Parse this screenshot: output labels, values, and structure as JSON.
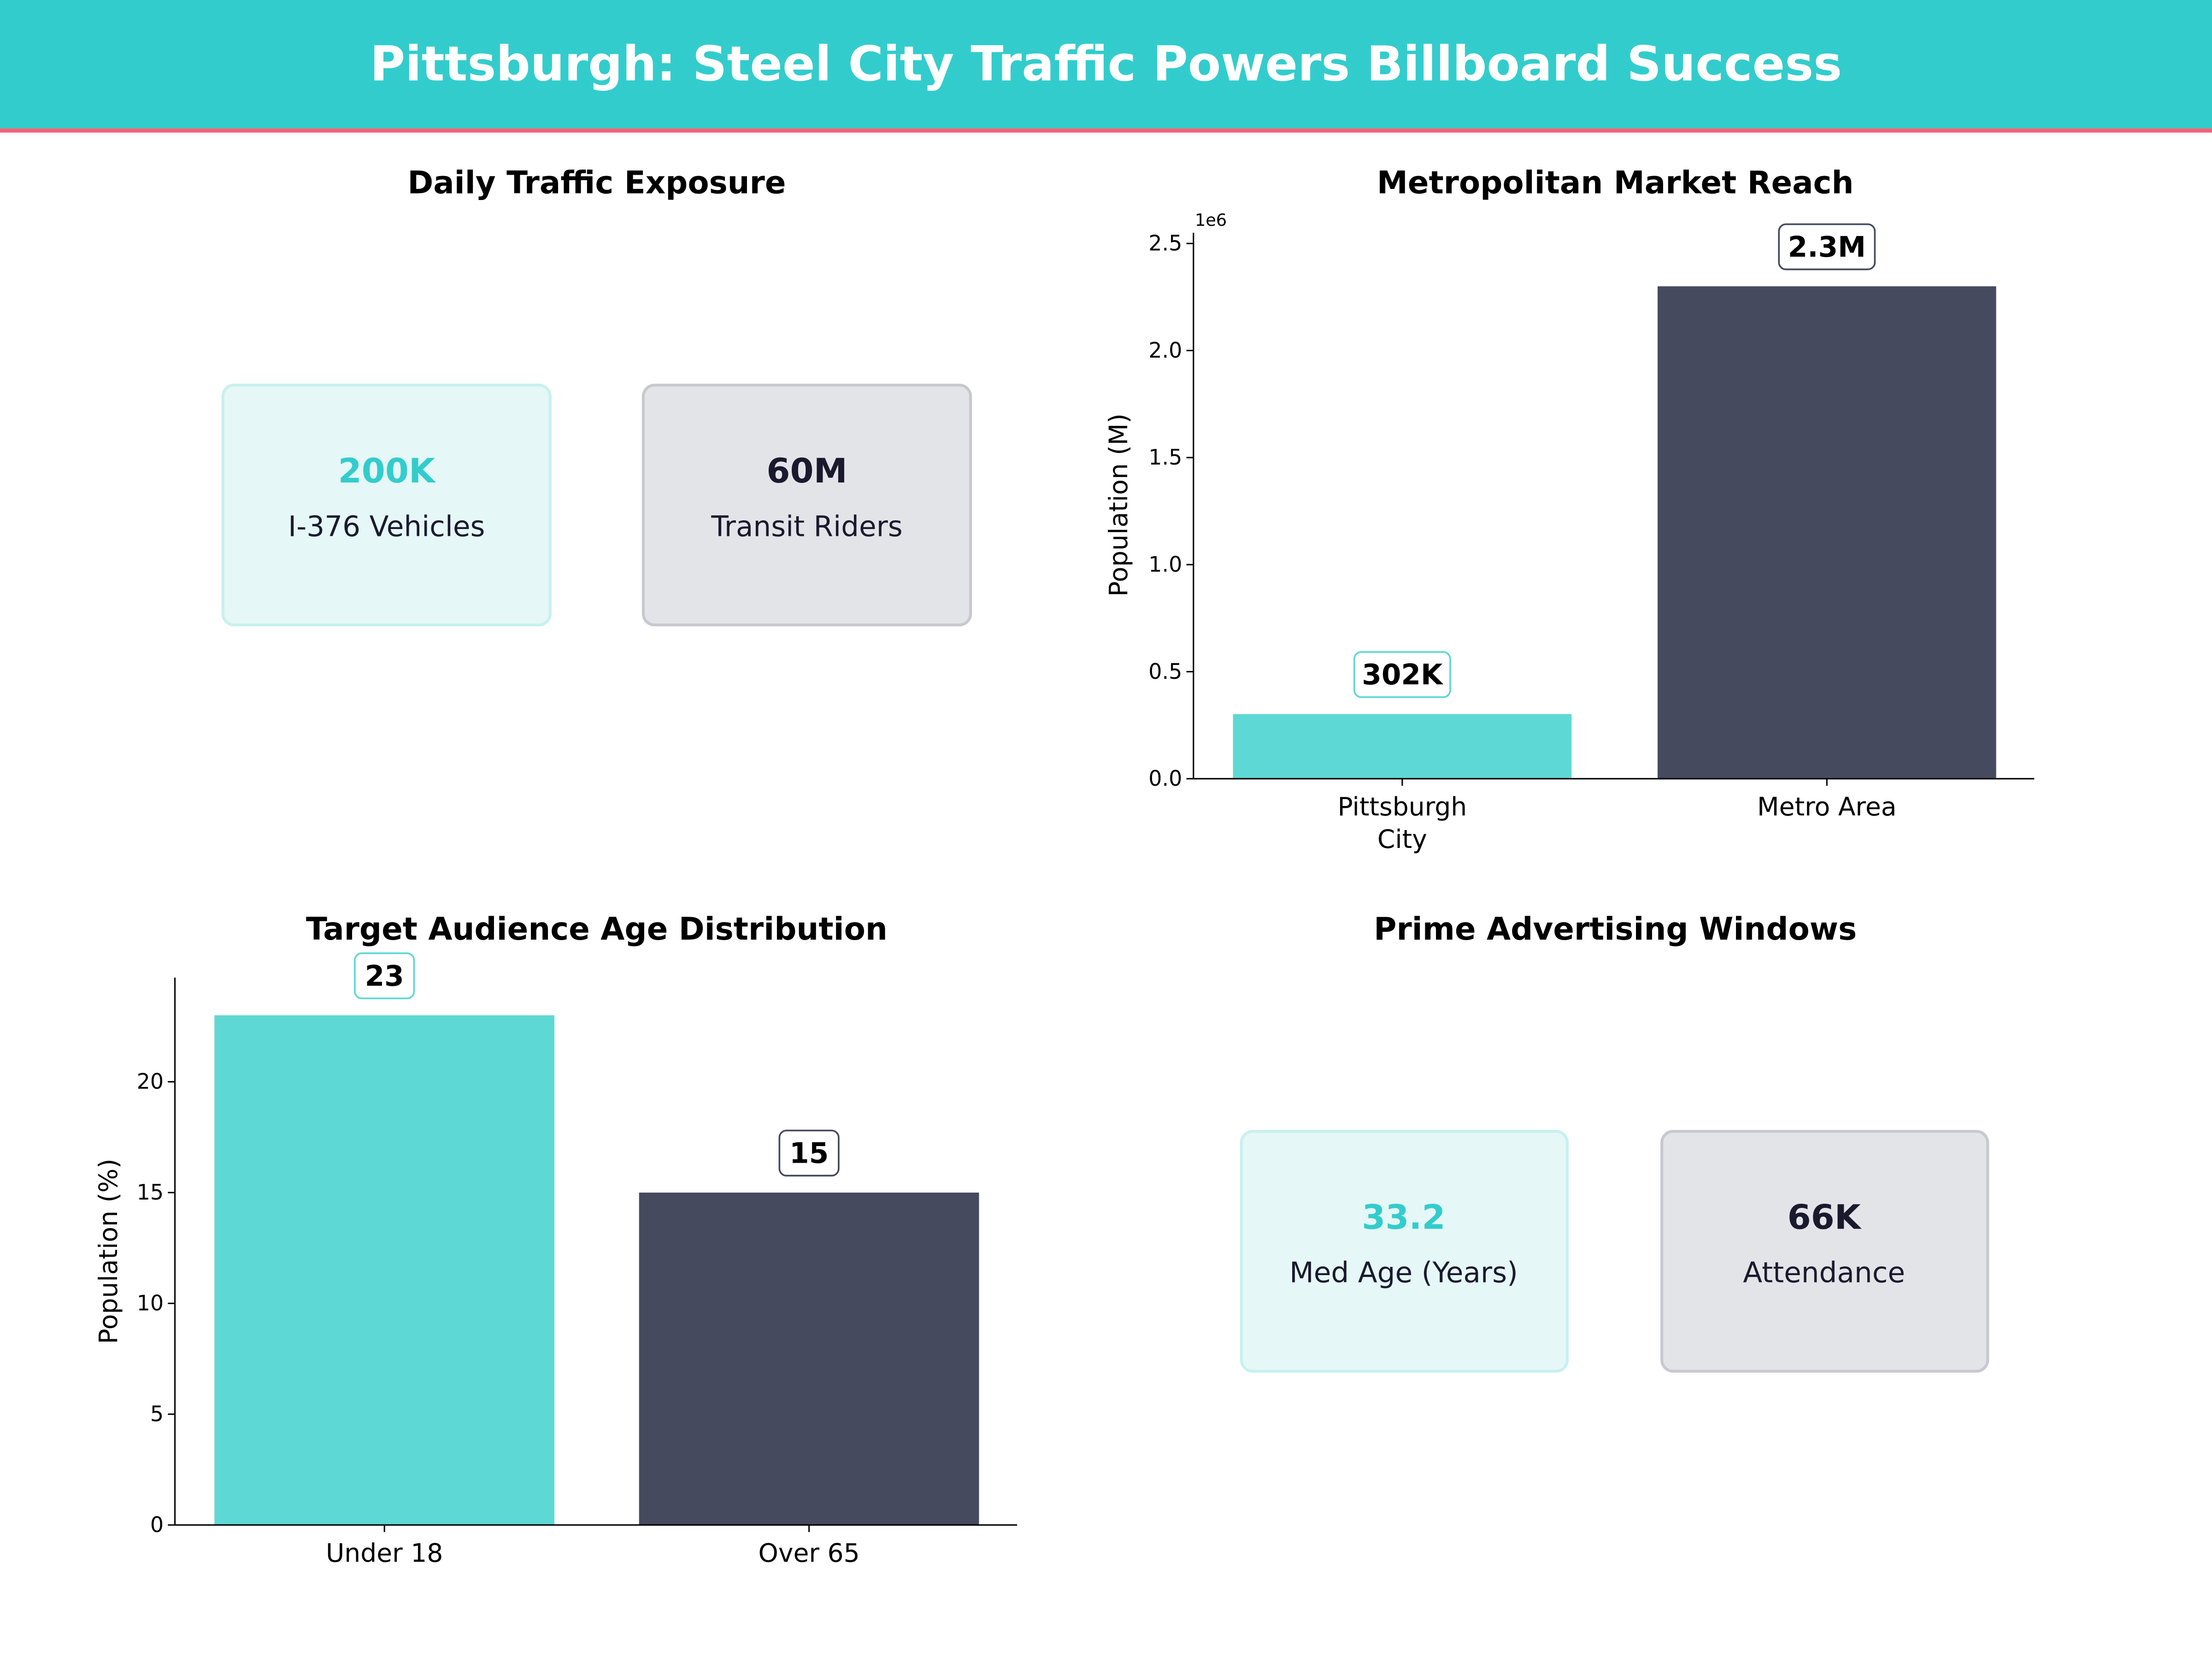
{
  "header": {
    "title": "Pittsburgh: Steel City Traffic Powers Billboard Success",
    "bg_color": "#33CCCC",
    "accent_line": "#F06478"
  },
  "panels": {
    "traffic": {
      "title": "Daily Traffic Exposure",
      "kpis": [
        {
          "value": "200K",
          "label": "I-376 Vehicles",
          "color": "#33CCCC"
        },
        {
          "value": "60M",
          "label": "Transit Riders",
          "color": "#1A1A2E"
        }
      ]
    },
    "windows": {
      "title": "Prime Advertising Windows",
      "kpis": [
        {
          "value": "33.2",
          "label": "Med Age (Years)",
          "color": "#33CCCC"
        },
        {
          "value": "66K",
          "label": "Attendance",
          "color": "#1A1A2E"
        }
      ]
    }
  },
  "chart_data": [
    {
      "type": "bar",
      "title": "Metropolitan Market Reach",
      "ylabel": "Population (M)",
      "offset_label": "1e6",
      "categories": [
        "Pittsburgh\nCity",
        "Metro Area"
      ],
      "category_lines": [
        [
          "Pittsburgh",
          "City"
        ],
        [
          "Metro Area"
        ]
      ],
      "values": [
        302000,
        2300000
      ],
      "data_labels": [
        "302K",
        "2.3M"
      ],
      "colors": [
        "#5ED8D4",
        "#464A5F"
      ],
      "ylim": [
        0,
        2550000
      ],
      "yticks": [
        0,
        500000,
        1000000,
        1500000,
        2000000,
        2500000
      ],
      "ytick_labels": [
        "0.0",
        "0.5",
        "1.0",
        "1.5",
        "2.0",
        "2.5"
      ],
      "grid": false
    },
    {
      "type": "bar",
      "title": "Target Audience Age Distribution",
      "ylabel": "Population (%)",
      "categories": [
        "Under 18",
        "Over 65"
      ],
      "category_lines": [
        [
          "Under 18"
        ],
        [
          "Over 65"
        ]
      ],
      "values": [
        23,
        15
      ],
      "data_labels": [
        "23",
        "15"
      ],
      "colors": [
        "#5ED8D4",
        "#464A5F"
      ],
      "ylim": [
        0,
        24.7
      ],
      "yticks": [
        0,
        5,
        10,
        15,
        20
      ],
      "ytick_labels": [
        "0",
        "5",
        "10",
        "15",
        "20"
      ],
      "grid": false
    }
  ]
}
